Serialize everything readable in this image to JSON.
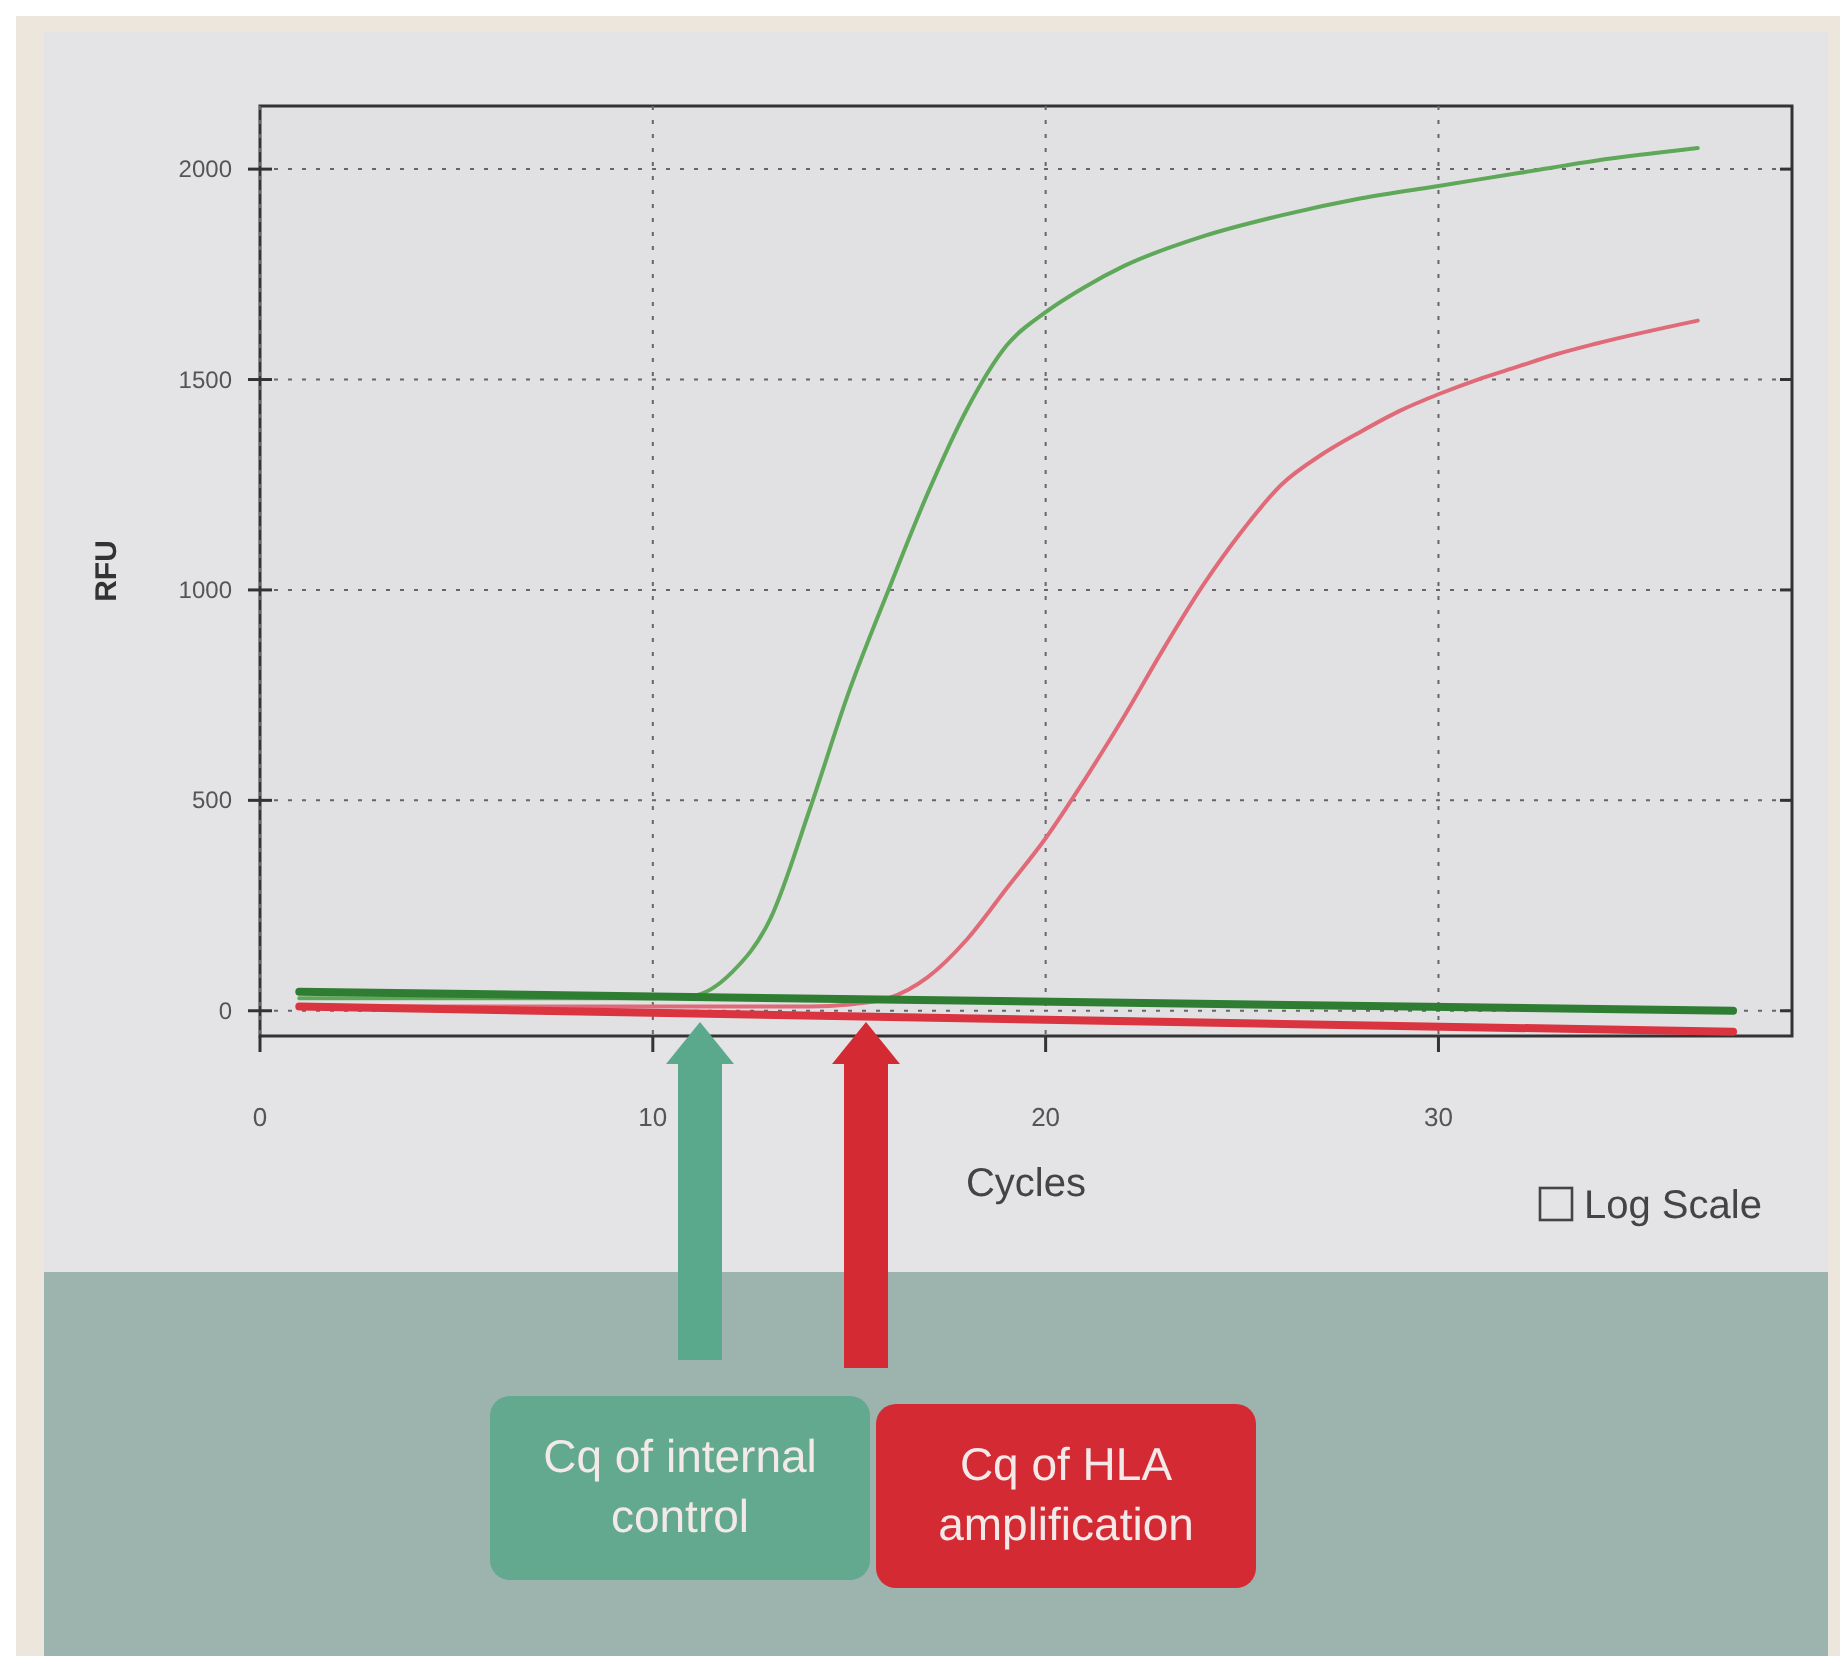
{
  "chart_data": {
    "type": "line",
    "xlabel": "Cycles",
    "ylabel": "RFU",
    "xlim": [
      0,
      39
    ],
    "ylim": [
      -60,
      2150
    ],
    "xticks": [
      0,
      10,
      20,
      30
    ],
    "yticks": [
      0,
      500,
      1000,
      1500,
      2000
    ],
    "grid": true,
    "line_style": "solid",
    "marker": "none",
    "series": [
      {
        "color": "#5fa85a",
        "x": [
          1,
          10,
          11,
          12,
          13,
          14,
          15,
          16,
          17,
          18,
          19,
          20,
          21,
          22,
          24,
          26,
          28,
          30,
          32,
          34,
          36.6
        ],
        "values": [
          30,
          30,
          35,
          90,
          220,
          480,
          760,
          1000,
          1230,
          1430,
          1580,
          1660,
          1720,
          1770,
          1840,
          1890,
          1930,
          1960,
          1990,
          2020,
          2050
        ]
      },
      {
        "color": "#e06a78",
        "x": [
          1,
          14,
          15,
          16,
          17,
          18,
          19,
          20,
          21,
          22,
          23,
          24,
          25,
          26,
          27,
          28,
          29,
          30,
          31,
          32,
          33,
          34,
          36.6
        ],
        "values": [
          10,
          10,
          15,
          30,
          80,
          170,
          290,
          410,
          550,
          700,
          860,
          1010,
          1140,
          1250,
          1320,
          1375,
          1425,
          1465,
          1500,
          1530,
          1560,
          1585,
          1640
        ]
      },
      {
        "color": "#2e7d32",
        "x": [
          1,
          37.5
        ],
        "values": [
          45,
          0
        ]
      },
      {
        "color": "#d9343f",
        "x": [
          1,
          37.5
        ],
        "values": [
          10,
          -50
        ]
      }
    ],
    "annotations": [
      "Cq of internal control",
      "Cq of HLA amplification",
      "Log Scale"
    ]
  }
}
